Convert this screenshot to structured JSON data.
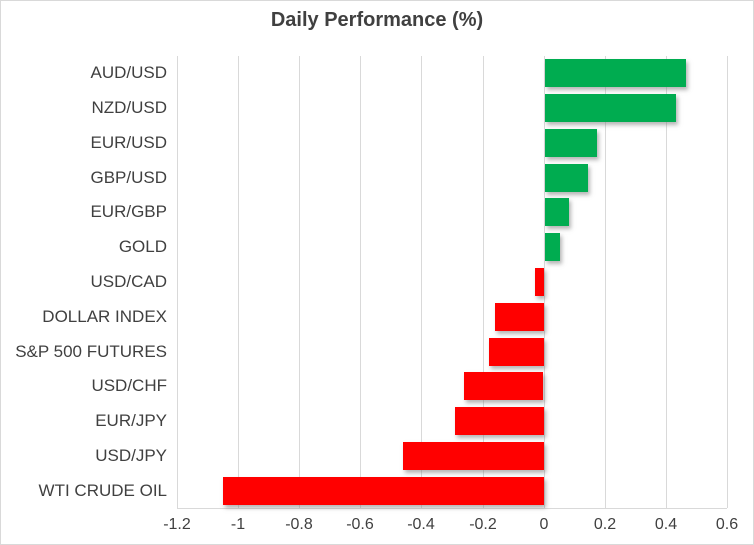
{
  "chart_data": {
    "type": "bar",
    "orientation": "horizontal",
    "title": "Daily Performance (%)",
    "categories": [
      "AUD/USD",
      "NZD/USD",
      "EUR/USD",
      "GBP/USD",
      "EUR/GBP",
      "GOLD",
      "USD/CAD",
      "DOLLAR INDEX",
      "S&P 500 FUTURES",
      "USD/CHF",
      "EUR/JPY",
      "USD/JPY",
      "WTI CRUDE OIL"
    ],
    "values": [
      0.46,
      0.43,
      0.17,
      0.14,
      0.08,
      0.05,
      -0.03,
      -0.16,
      -0.18,
      -0.26,
      -0.29,
      -0.46,
      -1.05
    ],
    "x_ticks": [
      -1.2,
      -1,
      -0.8,
      -0.6,
      -0.4,
      -0.2,
      0,
      0.2,
      0.4,
      0.6
    ],
    "x_tick_labels": [
      "-1.2",
      "-1",
      "-0.8",
      "-0.6",
      "-0.4",
      "-0.2",
      "0",
      "0.2",
      "0.4",
      "0.6"
    ],
    "xlim": [
      -1.2,
      0.6
    ],
    "grid": true,
    "legend": false,
    "xlabel": "",
    "ylabel": "",
    "colors": {
      "positive": "#00AC50",
      "negative": "#FF0000",
      "gridline": "#D9D9D9",
      "text": "#404040"
    }
  }
}
